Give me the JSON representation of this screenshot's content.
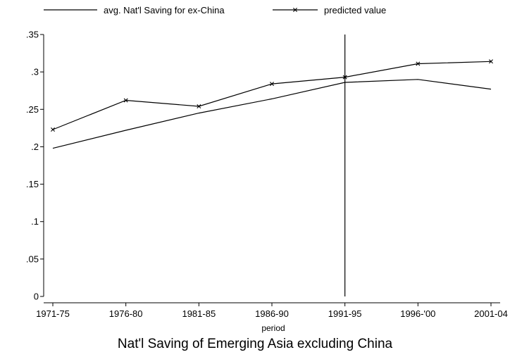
{
  "chart_data": {
    "type": "line",
    "title": "Nat'l Saving of Emerging Asia excluding China",
    "xlabel": "period",
    "ylabel": "",
    "categories": [
      "1971-75",
      "1976-80",
      "1981-85",
      "1986-90",
      "1991-95",
      "1996-'00",
      "2001-04"
    ],
    "ylim": [
      0,
      0.35
    ],
    "yticks": [
      0,
      0.05,
      0.1,
      0.15,
      0.2,
      0.25,
      0.3,
      0.35
    ],
    "ytick_labels": [
      "0",
      ".05",
      ".1",
      ".15",
      ".2",
      ".25",
      ".3",
      ".35"
    ],
    "series": [
      {
        "name": "avg. Nat'l Saving for ex-China",
        "marker": "none",
        "values": [
          0.198,
          0.222,
          0.245,
          0.264,
          0.286,
          0.29,
          0.277
        ]
      },
      {
        "name": "predicted value",
        "marker": "x",
        "values": [
          0.223,
          0.262,
          0.254,
          0.284,
          0.293,
          0.311,
          0.314
        ]
      }
    ],
    "reference_line": {
      "x_category": "1991-95"
    },
    "legend_position": "top",
    "grid": false,
    "colors": {
      "series": "#000000",
      "axis": "#000000"
    }
  }
}
